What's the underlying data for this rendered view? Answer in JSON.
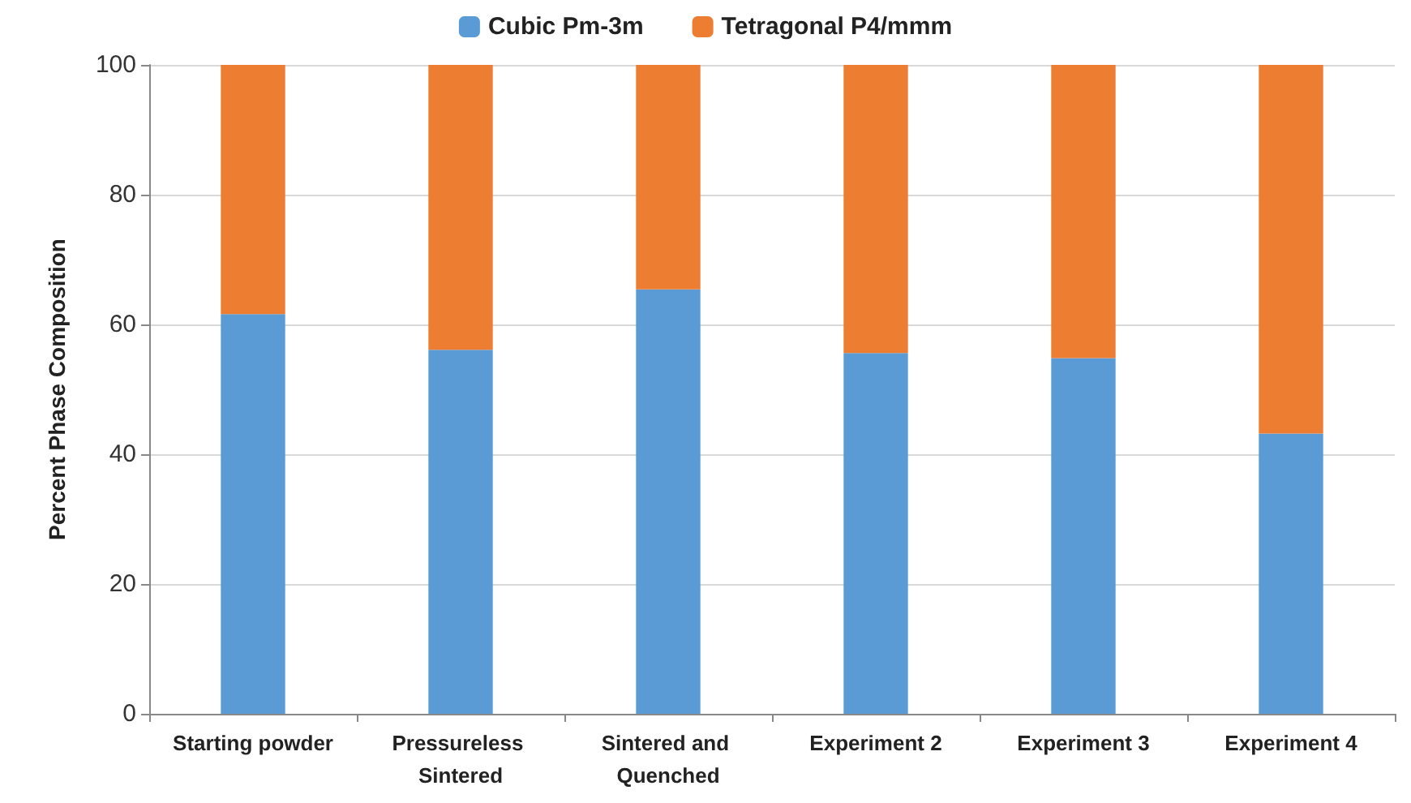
{
  "chart_data": {
    "type": "bar",
    "stacked": true,
    "ylabel": "Percent Phase Composition",
    "categories": [
      "Starting powder",
      "Pressureless Sintered",
      "Sintered and Quenched",
      "Experiment 2",
      "Experiment 3",
      "Experiment 4"
    ],
    "series": [
      {
        "name": "Cubic Pm-3m",
        "color": "#5b9bd5",
        "values": [
          61.6,
          56.1,
          65.4,
          55.6,
          54.8,
          43.2
        ]
      },
      {
        "name": "Tetragonal P4/mmm",
        "color": "#ed7d31",
        "values": [
          38.4,
          43.9,
          34.6,
          44.4,
          45.2,
          56.8
        ]
      }
    ],
    "ylim": [
      0,
      100
    ],
    "yticks": [
      0,
      20,
      40,
      60,
      80,
      100
    ],
    "grid": "y",
    "legend": "top"
  }
}
